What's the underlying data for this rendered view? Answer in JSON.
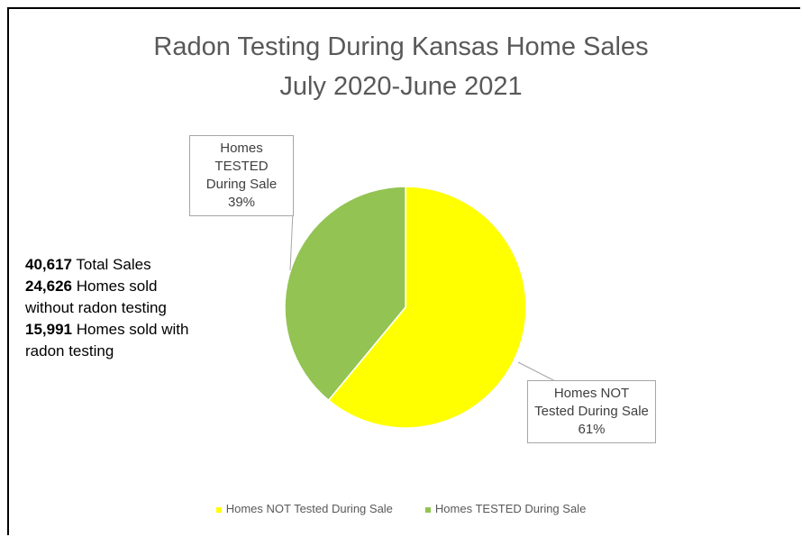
{
  "chart_data": {
    "type": "pie",
    "title": [
      "Radon Testing During Kansas Home Sales",
      "July 2020-June 2021"
    ],
    "categories": [
      "Homes NOT Tested During Sale",
      "Homes TESTED During Sale"
    ],
    "values": [
      61,
      39
    ],
    "value_labels": [
      "61%",
      "39%"
    ],
    "colors": [
      "#ffff00",
      "#92c353"
    ],
    "legend": "bottom",
    "annotations": [
      {
        "bold": "40,617",
        "text": "Total Sales"
      },
      {
        "bold": "24,626",
        "text": "Homes sold without radon testing"
      },
      {
        "bold": "15,991",
        "text": "Homes sold with radon testing"
      }
    ]
  }
}
